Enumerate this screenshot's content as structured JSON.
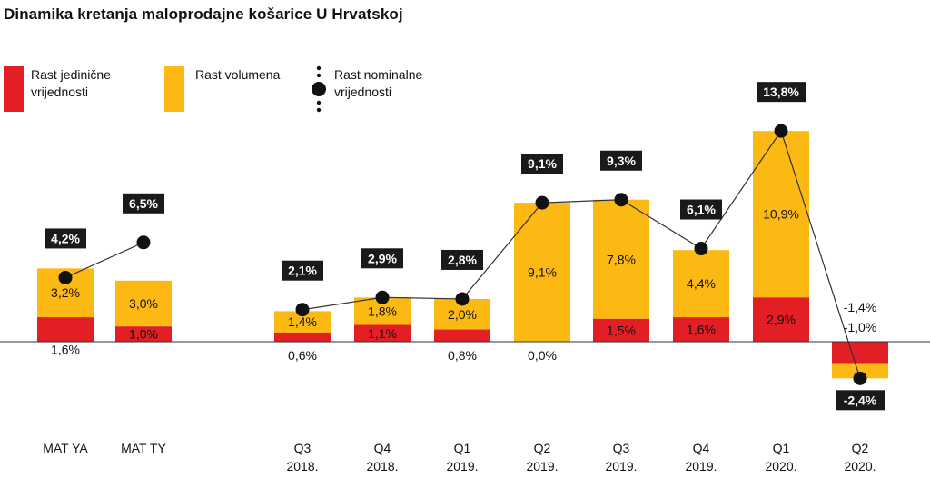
{
  "chart_data": {
    "type": "bar",
    "title": "Dinamika kretanja maloprodajne košarice U Hrvatskoj",
    "legend": [
      {
        "label": "Rast jedinične vrijednosti",
        "color": "#e31e25",
        "marker": "red-square"
      },
      {
        "label": "Rast volumena",
        "color": "#fdb913",
        "marker": "yellow-square"
      },
      {
        "label": "Rast nominalne vrijednosti",
        "color": "#111111",
        "marker": "dot-line"
      }
    ],
    "categories": [
      {
        "line1": "MAT YA",
        "line2": ""
      },
      {
        "line1": "MAT TY",
        "line2": ""
      },
      {
        "line1": "Q3",
        "line2": "2018."
      },
      {
        "line1": "Q4",
        "line2": "2018."
      },
      {
        "line1": "Q1",
        "line2": "2019."
      },
      {
        "line1": "Q2",
        "line2": "2019."
      },
      {
        "line1": "Q3",
        "line2": "2019."
      },
      {
        "line1": "Q4",
        "line2": "2019."
      },
      {
        "line1": "Q1",
        "line2": "2020."
      },
      {
        "line1": "Q2",
        "line2": "2020."
      }
    ],
    "series": [
      {
        "name": "Rast jedinične vrijednosti",
        "color": "#e31e25",
        "values": [
          1.6,
          1.0,
          0.6,
          1.1,
          0.8,
          0.0,
          1.5,
          1.6,
          2.9,
          -1.4
        ],
        "labels": [
          "1,6%",
          "1,0%",
          "0,6%",
          "1,1%",
          "0,8%",
          "0,0%",
          "1,5%",
          "1,6%",
          "2,9%",
          "-1,4%"
        ]
      },
      {
        "name": "Rast volumena",
        "color": "#fdb913",
        "values": [
          3.2,
          3.0,
          1.4,
          1.8,
          2.0,
          9.1,
          7.8,
          4.4,
          10.9,
          -1.0
        ],
        "labels": [
          "3,2%",
          "3,0%",
          "1,4%",
          "1,8%",
          "2,0%",
          "9,1%",
          "7,8%",
          "4,4%",
          "10,9%",
          "-1,0%"
        ]
      },
      {
        "name": "Rast nominalne vrijednosti",
        "color": "#111111",
        "values": [
          4.2,
          6.5,
          2.1,
          2.9,
          2.8,
          9.1,
          9.3,
          6.1,
          13.8,
          -2.4
        ],
        "labels": [
          "4,2%",
          "6,5%",
          "2,1%",
          "2,9%",
          "2,8%",
          "9,1%",
          "9,3%",
          "6,1%",
          "13,8%",
          "-2,4%"
        ]
      }
    ],
    "ylabel": "",
    "xlabel": "",
    "grid": false,
    "legend_position": "top-left"
  }
}
